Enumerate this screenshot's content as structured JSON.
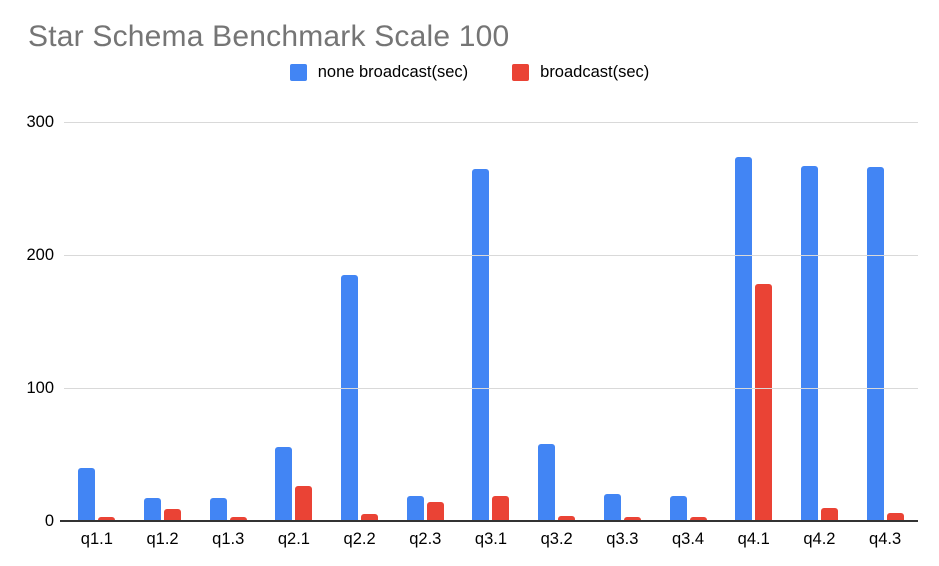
{
  "title": "Star Schema Benchmark Scale 100",
  "chart_data": {
    "type": "bar",
    "title": "Star Schema Benchmark Scale 100",
    "categories": [
      "q1.1",
      "q1.2",
      "q1.3",
      "q2.1",
      "q2.2",
      "q2.3",
      "q3.1",
      "q3.2",
      "q3.3",
      "q3.4",
      "q4.1",
      "q4.2",
      "q4.3"
    ],
    "series": [
      {
        "name": "none broadcast(sec)",
        "color": "#4285F4",
        "values": [
          40,
          17,
          17,
          56,
          185,
          19,
          265,
          58,
          20,
          19,
          274,
          267,
          266
        ]
      },
      {
        "name": "broadcast(sec)",
        "color": "#EA4335",
        "values": [
          3,
          9,
          3,
          26,
          5,
          14,
          19,
          4,
          3,
          3,
          178,
          10,
          6
        ]
      }
    ],
    "xlabel": "",
    "ylabel": "",
    "ylim": [
      0,
      300
    ],
    "yticks": [
      0,
      100,
      200,
      300
    ],
    "grid": true,
    "legend_position": "top"
  },
  "colors": {
    "series1": "#4285F4",
    "series2": "#EA4335",
    "title_text": "#757575",
    "axis_text": "#000000",
    "gridline": "#d9d9d9",
    "axis_line": "#333333",
    "background": "#ffffff"
  }
}
